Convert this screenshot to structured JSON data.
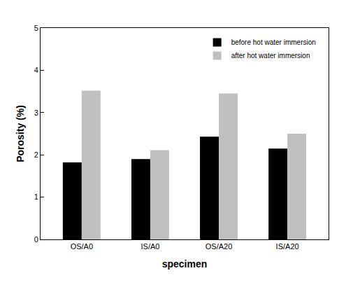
{
  "chart_data": {
    "type": "bar",
    "x_label": "specimen",
    "y_label": "Porosity (%)",
    "categories": [
      "OS/A0",
      "IS/A0",
      "OS/A20",
      "IS/A20"
    ],
    "series": [
      {
        "name": "before hot water immersion",
        "color": "#000000",
        "values": [
          1.82,
          1.9,
          2.43,
          2.15
        ]
      },
      {
        "name": "after hot water immersion",
        "color": "#c0c0c0",
        "values": [
          3.52,
          2.11,
          3.45,
          2.5
        ]
      }
    ],
    "ylim": [
      0,
      5
    ],
    "yticks": [
      0,
      1,
      2,
      3,
      4,
      5
    ],
    "grid": false,
    "legend": "top right"
  }
}
